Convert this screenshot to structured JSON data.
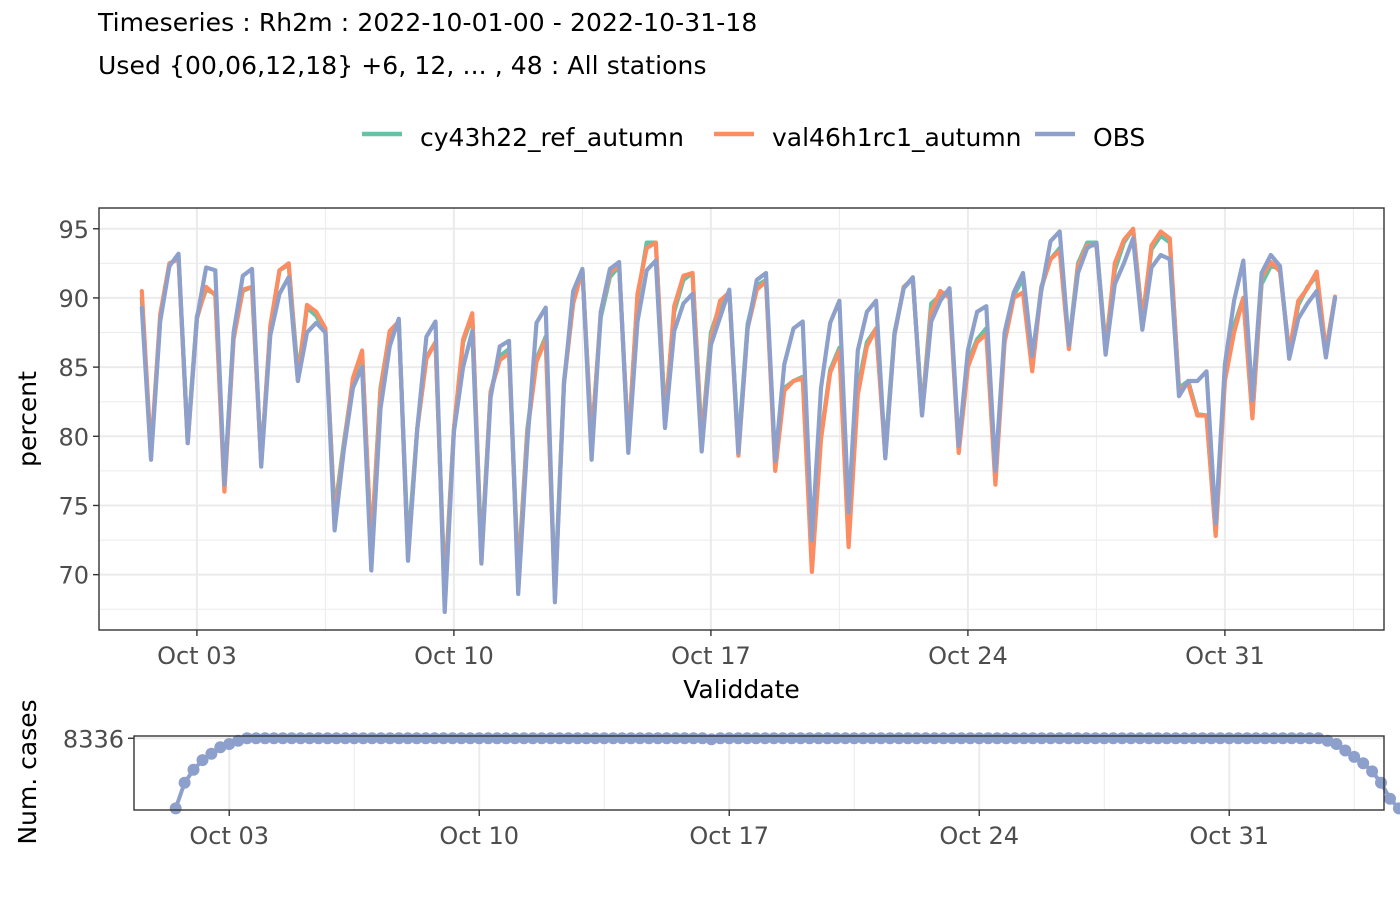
{
  "title_line1": "Timeseries : Rh2m : 2022-10-01-00 - 2022-10-31-18",
  "title_line2": "Used {00,06,12,18} +6, 12, ... , 48 : All stations",
  "chart_data": [
    {
      "type": "line",
      "xlabel": "Validdate",
      "ylabel": "percent",
      "x_start": "2022-10-01 12:00",
      "x_step_hours": 6,
      "xlim": [
        "2022-09-30 08:00",
        "2022-11-04 08:00"
      ],
      "ylim": [
        66,
        96.5
      ],
      "xticks": [
        {
          "label": "Oct 03",
          "date": "2022-10-03"
        },
        {
          "label": "Oct 10",
          "date": "2022-10-10"
        },
        {
          "label": "Oct 17",
          "date": "2022-10-17"
        },
        {
          "label": "Oct 24",
          "date": "2022-10-24"
        },
        {
          "label": "Oct 31",
          "date": "2022-10-31"
        }
      ],
      "yticks": [
        70,
        75,
        80,
        85,
        90,
        95
      ],
      "grid": true,
      "legend_position": "top",
      "series": [
        {
          "name": "cy43h22_ref_autumn",
          "color": "#66c2a5",
          "values": [
            90,
            78.5,
            88.5,
            92.4,
            93,
            79.8,
            88.7,
            90.6,
            90.3,
            76.5,
            87.3,
            90.5,
            90.8,
            78.2,
            87.8,
            92,
            92.4,
            84.5,
            89.3,
            88.7,
            87.5,
            74.5,
            79.5,
            84,
            86,
            72,
            83.5,
            87.5,
            88.2,
            72,
            80.5,
            85.7,
            86.8,
            69,
            80.5,
            86.8,
            88.7,
            71.5,
            83.2,
            85.8,
            86.3,
            70,
            80.5,
            85.6,
            87.2,
            68.8,
            84,
            89.8,
            92,
            79.8,
            88.6,
            91.5,
            92.3,
            79.5,
            90,
            94,
            94,
            81.5,
            89,
            91.3,
            91.8,
            79.8,
            87.5,
            89.5,
            90.4,
            79.3,
            88.1,
            90.9,
            91.3,
            78,
            83.5,
            84,
            84.3,
            71,
            80,
            84.8,
            86.4,
            72.5,
            83.5,
            86.8,
            87.8,
            79,
            87.5,
            90.7,
            91.4,
            81.8,
            89.6,
            90.2,
            90.5,
            79,
            85.4,
            87,
            87.8,
            77,
            87.2,
            90.2,
            91.4,
            85.3,
            90.8,
            92.8,
            93.6,
            86.6,
            92.5,
            94,
            94,
            86.5,
            92,
            94,
            95,
            88.5,
            93.5,
            94.5,
            94,
            83.5,
            84,
            81.6,
            81.5,
            73,
            84.5,
            88,
            90,
            81.5,
            91,
            92.3,
            92.1,
            86,
            89.5,
            90.8,
            91.6,
            86,
            90
          ]
        },
        {
          "name": "val46h1rc1_autumn",
          "color": "#fc8d62",
          "values": [
            90.5,
            78.8,
            88.8,
            92.5,
            92.8,
            79.5,
            88.5,
            90.8,
            90.2,
            76,
            87,
            90.6,
            90.8,
            78,
            88,
            92,
            92.5,
            84,
            89.5,
            89,
            87.8,
            74,
            79.2,
            84.2,
            86.2,
            71.8,
            83.2,
            87.6,
            88.3,
            71.2,
            80.5,
            85.6,
            86.8,
            68.5,
            80.5,
            87,
            88.9,
            71,
            83.2,
            85.5,
            86,
            69.5,
            80.2,
            85.4,
            87,
            68.3,
            83.8,
            89.6,
            92,
            79.5,
            89,
            91.8,
            92.4,
            79.3,
            90.3,
            93.6,
            94,
            81,
            89.4,
            91.6,
            91.8,
            79.5,
            87,
            89.8,
            90.4,
            78.6,
            87.8,
            90.6,
            91.2,
            77.5,
            83.3,
            84,
            84.2,
            70.2,
            79.8,
            84.6,
            86.2,
            72,
            83,
            86.5,
            87.8,
            78.5,
            87.3,
            90.8,
            91.4,
            81.6,
            89,
            90.5,
            90,
            78.8,
            85,
            86.8,
            87.4,
            76.5,
            86.8,
            90,
            90.4,
            84.7,
            90.7,
            92.8,
            93.4,
            86.3,
            92.3,
            93.8,
            93.8,
            86.2,
            92.5,
            94.2,
            95,
            88.3,
            93.8,
            94.8,
            94.3,
            83.3,
            83.8,
            81.5,
            81.5,
            72.8,
            84,
            87.5,
            90,
            81.3,
            91.5,
            92.6,
            91.9,
            86.1,
            89.8,
            90.7,
            91.9,
            86.2,
            90.1
          ]
        },
        {
          "name": "OBS",
          "color": "#8da0cb",
          "values": [
            89.3,
            78.3,
            88.3,
            92.3,
            93.2,
            79.5,
            88.5,
            92.2,
            92,
            76.5,
            87.5,
            91.6,
            92.1,
            77.8,
            87.3,
            90.3,
            91.5,
            84,
            87.5,
            88.2,
            87.5,
            73.2,
            79,
            83.5,
            85,
            70.3,
            82,
            86.5,
            88.5,
            71,
            80.5,
            87.2,
            88.3,
            67.3,
            80.3,
            85,
            87.6,
            70.8,
            82.8,
            86.5,
            86.9,
            68.6,
            79.5,
            88.2,
            89.3,
            68,
            83.8,
            90.5,
            92.1,
            78.3,
            89,
            92.1,
            92.6,
            78.8,
            88.3,
            92,
            92.7,
            80.6,
            87.6,
            89.6,
            90.3,
            78.9,
            86.6,
            88.6,
            90.6,
            78.8,
            87.8,
            91.3,
            91.8,
            78.2,
            85.2,
            87.8,
            88.3,
            72.5,
            83.5,
            88.2,
            89.8,
            74.5,
            86.2,
            89,
            89.8,
            78.4,
            87.4,
            90.7,
            91.5,
            81.5,
            88.3,
            89.8,
            90.7,
            79.3,
            86.2,
            89,
            89.4,
            77.5,
            87.5,
            90.4,
            91.8,
            85.8,
            90.5,
            94.1,
            94.8,
            86.6,
            91.8,
            93.6,
            94,
            85.9,
            91,
            92.5,
            94.3,
            87.7,
            92.2,
            93.1,
            92.8,
            82.9,
            84,
            84,
            84.7,
            73.7,
            85.2,
            89.8,
            92.7,
            82.6,
            91.8,
            93.1,
            92.3,
            85.6,
            88.5,
            89.6,
            90.5,
            85.7,
            90
          ]
        }
      ]
    },
    {
      "type": "scatter",
      "ylabel": "Num. cases",
      "yticks": [
        8336
      ],
      "xticks": [
        {
          "label": "Oct 03",
          "date": "2022-10-03"
        },
        {
          "label": "Oct 10",
          "date": "2022-10-10"
        },
        {
          "label": "Oct 17",
          "date": "2022-10-17"
        },
        {
          "label": "Oct 24",
          "date": "2022-10-24"
        },
        {
          "label": "Oct 31",
          "date": "2022-10-31"
        }
      ],
      "ylim": [
        7890,
        8350
      ],
      "grid": true,
      "series": [
        {
          "name": "OBS",
          "color": "#8da0cb",
          "values": [
            7900,
            8060,
            8140,
            8200,
            8240,
            8280,
            8300,
            8320,
            8336,
            8336,
            8336,
            8336,
            8336,
            8336,
            8336,
            8336,
            8336,
            8336,
            8336,
            8336,
            8336,
            8336,
            8336,
            8336,
            8336,
            8336,
            8336,
            8336,
            8336,
            8336,
            8336,
            8336,
            8336,
            8336,
            8336,
            8336,
            8336,
            8336,
            8336,
            8336,
            8336,
            8336,
            8336,
            8336,
            8336,
            8336,
            8336,
            8336,
            8336,
            8336,
            8336,
            8336,
            8336,
            8336,
            8336,
            8336,
            8336,
            8336,
            8336,
            8336,
            8330,
            8336,
            8336,
            8336,
            8336,
            8336,
            8336,
            8336,
            8336,
            8336,
            8336,
            8336,
            8336,
            8336,
            8336,
            8336,
            8336,
            8336,
            8336,
            8336,
            8336,
            8336,
            8336,
            8336,
            8336,
            8336,
            8336,
            8336,
            8336,
            8336,
            8336,
            8336,
            8336,
            8336,
            8336,
            8336,
            8336,
            8336,
            8336,
            8336,
            8336,
            8336,
            8336,
            8336,
            8336,
            8336,
            8336,
            8336,
            8336,
            8336,
            8336,
            8336,
            8336,
            8336,
            8336,
            8336,
            8336,
            8336,
            8336,
            8336,
            8336,
            8336,
            8336,
            8336,
            8336,
            8336,
            8336,
            8336,
            8336,
            8320,
            8300,
            8260,
            8220,
            8180,
            8130,
            8060,
            7960,
            7900
          ]
        }
      ]
    }
  ]
}
